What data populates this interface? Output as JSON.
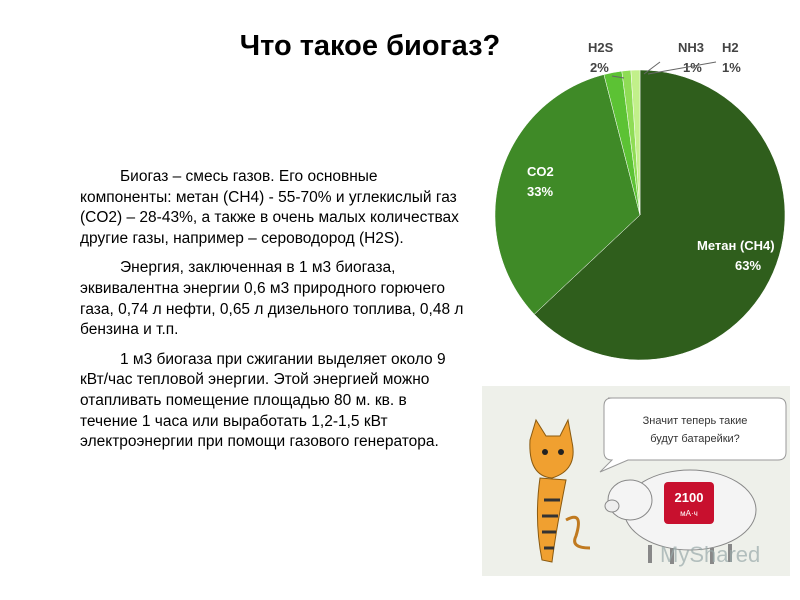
{
  "slide": {
    "title": "Что такое биогаз?",
    "paragraphs": [
      "Биогаз – смесь газов. Его основные компоненты: метан (CH4) - 55-70% и углекислый газ (CO2) – 28-43%, а также в очень малых количествах другие газы, например – сероводород (H2S).",
      "Энергия, заключенная в 1 м3 биогаза, эквивалентна энергии 0,6 м3 природного горючего газа, 0,74 л нефти, 0,65 л дизельного топлива, 0,48 л бензина и т.п.",
      "1 м3  биогаза при сжигании выделяет около 9 кВт/час тепловой энергии. Этой энергией можно отапливать помещение площадью 80 м. кв. в течение 1 часа или выработать 1,2-1,5 кВт электроэнергии при помощи газового генератора."
    ]
  },
  "chart_data": {
    "type": "pie",
    "categories": [
      "Метан (CH4)",
      "CO2",
      "H2S",
      "NH3",
      "H2"
    ],
    "values": [
      63,
      33,
      2,
      1,
      1
    ],
    "value_labels": [
      "63%",
      "33%",
      "2%",
      "1%",
      "1%"
    ],
    "colors": [
      "#2f5e1c",
      "#3f8a27",
      "#5cc234",
      "#8fdc55",
      "#c2f08a"
    ]
  },
  "cartoon": {
    "bubble_lines": [
      "Значит теперь такие",
      "будут батарейки?"
    ],
    "battery_value": "2100",
    "battery_unit": "мА·ч",
    "watermark": "MyShared"
  }
}
